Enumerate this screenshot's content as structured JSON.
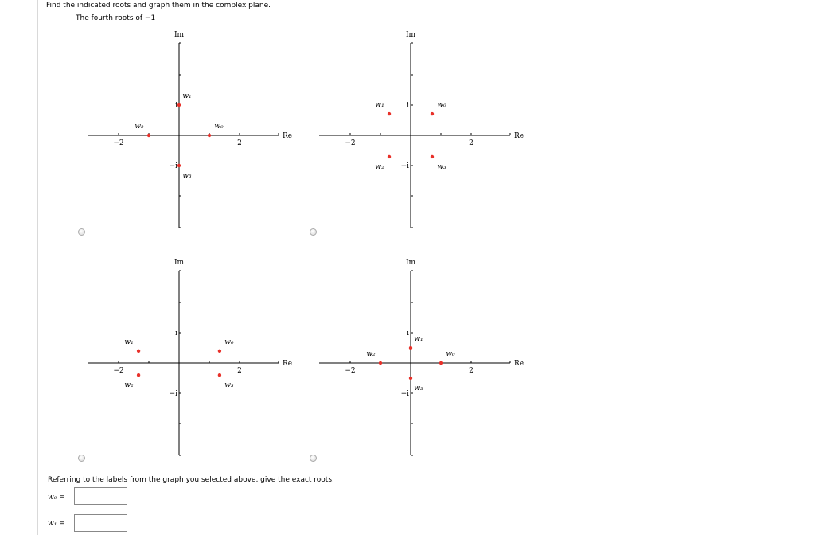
{
  "question": {
    "title": "Find the indicated roots and graph them in the complex plane.",
    "subtitle": "The fourth roots of −1"
  },
  "axis_labels": {
    "re": "Re",
    "im": "Im",
    "i": "i",
    "neg_i": "−i",
    "two": "2",
    "neg_two": "−2"
  },
  "options": [
    {
      "roots": [
        {
          "label": "w₀",
          "re": 1,
          "im": 0
        },
        {
          "label": "w₁",
          "re": 0,
          "im": 1
        },
        {
          "label": "w₂",
          "re": -1,
          "im": 0
        },
        {
          "label": "w₃",
          "re": 0,
          "im": -1
        }
      ]
    },
    {
      "roots": [
        {
          "label": "w₀",
          "re": 0.71,
          "im": 0.71
        },
        {
          "label": "w₁",
          "re": -0.71,
          "im": 0.71
        },
        {
          "label": "w₂",
          "re": -0.71,
          "im": -0.71
        },
        {
          "label": "w₃",
          "re": 0.71,
          "im": -0.71
        }
      ]
    },
    {
      "roots": [
        {
          "label": "w₀",
          "re": 1.34,
          "im": 0.4
        },
        {
          "label": "w₁",
          "re": -1.34,
          "im": 0.4
        },
        {
          "label": "w₂",
          "re": -1.34,
          "im": -0.4
        },
        {
          "label": "w₃",
          "re": 1.34,
          "im": -0.4
        }
      ]
    },
    {
      "roots": [
        {
          "label": "w₀",
          "re": 1,
          "im": 0
        },
        {
          "label": "w₁",
          "re": 0,
          "im": 0.5
        },
        {
          "label": "w₂",
          "re": -1,
          "im": 0
        },
        {
          "label": "w₃",
          "re": 0,
          "im": -0.5
        }
      ]
    }
  ],
  "prompt": "Referring to the labels from the graph you selected above, give the exact roots.",
  "answers": [
    {
      "label": "w₀ =",
      "value": ""
    },
    {
      "label": "w₁ =",
      "value": ""
    }
  ],
  "colors": {
    "point": "#e8312a"
  }
}
